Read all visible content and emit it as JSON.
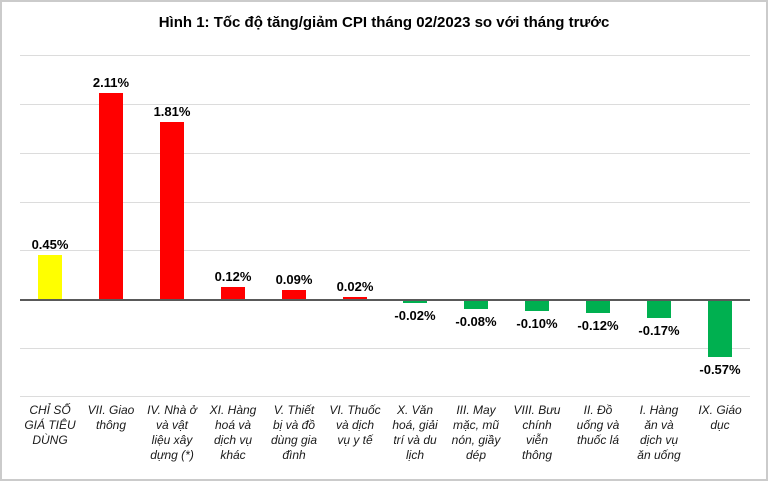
{
  "title": "Hình 1: Tốc độ tăng/giảm CPI tháng 02/2023 so với tháng trước",
  "chart_data": {
    "type": "bar",
    "title": "Hình 1: Tốc độ tăng/giảm CPI tháng 02/2023 so với tháng trước",
    "xlabel": "",
    "ylabel": "",
    "legend": "none",
    "grid": true,
    "ylim": [
      -1.0,
      2.5
    ],
    "gridline_step": 0.5,
    "unit": "%",
    "categories": [
      "CHỈ SỐ\nGIÁ TIÊU\nDÙNG",
      "VII. Giao\nthông",
      "IV. Nhà ở\nvà vật\nliệu xây\ndựng (*)",
      "XI. Hàng\nhoá và\ndịch vụ\nkhác",
      "V. Thiết\nbị và đồ\ndùng gia\nđình",
      "VI. Thuốc\nvà dịch\nvụ y tế",
      "X. Văn\nhoá, giải\ntrí và du\nlịch",
      "III. May\nmặc, mũ\nnón, giầy\ndép",
      "VIII. Bưu\nchính\nviễn\nthông",
      "II. Đồ\nuống và\nthuốc lá",
      "I. Hàng\năn và\ndịch vụ\năn uống",
      "IX. Giáo\ndục"
    ],
    "values": [
      0.45,
      2.11,
      1.81,
      0.12,
      0.09,
      0.02,
      -0.02,
      -0.08,
      -0.1,
      -0.12,
      -0.17,
      -0.57
    ],
    "value_labels": [
      "0.45%",
      "2.11%",
      "1.81%",
      "0.12%",
      "0.09%",
      "0.02%",
      "-0.02%",
      "-0.08%",
      "-0.10%",
      "-0.12%",
      "-0.17%",
      "-0.57%"
    ],
    "bar_colors": [
      "#FFFF00",
      "#FF0000",
      "#FF0000",
      "#FF0000",
      "#FF0000",
      "#FF0000",
      "#00B050",
      "#00B050",
      "#00B050",
      "#00B050",
      "#00B050",
      "#00B050"
    ],
    "colors": {
      "overall_cpi_bar": "#FFFF00",
      "increase_bar": "#FF0000",
      "decrease_bar": "#00B050",
      "gridline": "#DCDCDC",
      "axis_line": "#595959"
    }
  }
}
